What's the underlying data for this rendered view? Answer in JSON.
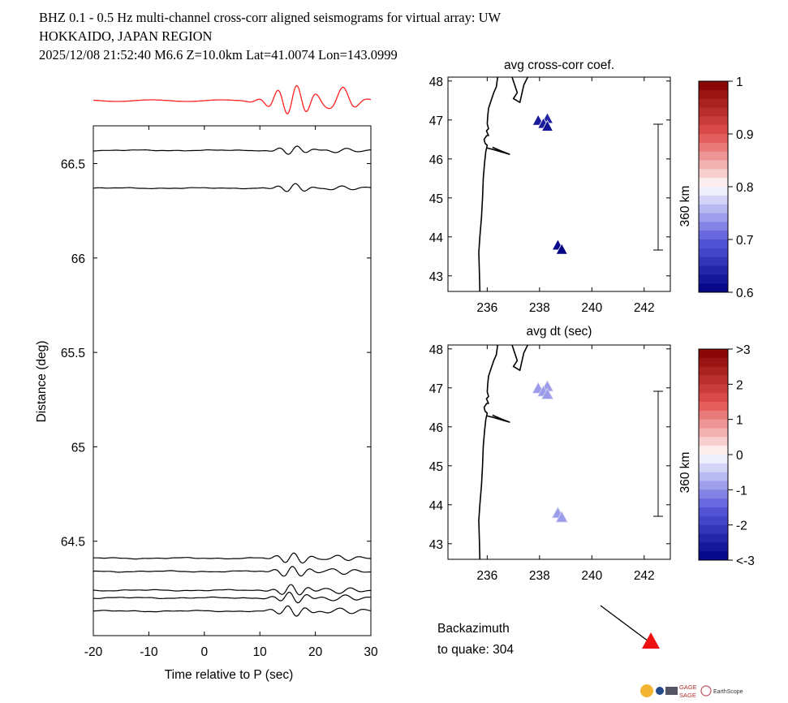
{
  "header": {
    "line1": "BHZ  0.1 - 0.5 Hz  multi-channel cross-corr aligned seismograms for virtual array: UW",
    "line2": "HOKKAIDO, JAPAN REGION",
    "line3": "2025/12/08  21:52:40  M6.6  Z=10.0km Lat=41.0074 Lon=143.0999"
  },
  "chart_data": [
    {
      "type": "line",
      "name": "aligned-seismograms",
      "xlabel": "Time relative to P (sec)",
      "ylabel": "Distance (deg)",
      "xlim": [
        -20,
        30
      ],
      "ylim": [
        64.0,
        66.7
      ],
      "xticks": [
        -20,
        -10,
        0,
        10,
        20,
        30
      ],
      "yticks": [
        64.5,
        65,
        65.5,
        66,
        66.5
      ],
      "ytick_labels": [
        "64.5",
        "65",
        "65.5",
        "66",
        "66.5"
      ],
      "trace_offsets_deg": [
        66.57,
        66.37,
        64.41,
        64.34,
        64.24,
        64.2,
        64.13
      ],
      "stack_color": "#ff2020",
      "trace_color": "#000000"
    },
    {
      "type": "scatter",
      "name": "avg-cross-corr-map",
      "title": "avg cross-corr coef.",
      "xlim": [
        234.5,
        243
      ],
      "ylim": [
        42.6,
        48.1
      ],
      "xticks": [
        236,
        238,
        240,
        242
      ],
      "yticks": [
        43,
        44,
        45,
        46,
        47,
        48
      ],
      "stations": [
        {
          "lon": 237.95,
          "lat": 46.97,
          "value": 0.63
        },
        {
          "lon": 238.3,
          "lat": 47.02,
          "value": 0.64
        },
        {
          "lon": 238.15,
          "lat": 46.89,
          "value": 0.63
        },
        {
          "lon": 238.3,
          "lat": 46.82,
          "value": 0.62
        },
        {
          "lon": 238.7,
          "lat": 43.77,
          "value": 0.61
        },
        {
          "lon": 238.85,
          "lat": 43.66,
          "value": 0.6
        }
      ],
      "scale_label": "360 km",
      "colorbar": {
        "min": 0.6,
        "max": 1,
        "ticks": [
          1,
          0.9,
          0.8,
          0.7,
          0.6
        ],
        "tick_labels": [
          "1",
          "0.9",
          "0.8",
          "0.7",
          "0.6"
        ]
      }
    },
    {
      "type": "scatter",
      "name": "avg-dt-map",
      "title": "avg dt (sec)",
      "xlim": [
        234.5,
        243
      ],
      "ylim": [
        42.6,
        48.1
      ],
      "xticks": [
        236,
        238,
        240,
        242
      ],
      "yticks": [
        43,
        44,
        45,
        46,
        47,
        48
      ],
      "stations": [
        {
          "lon": 237.95,
          "lat": 46.97,
          "value": -0.9
        },
        {
          "lon": 238.3,
          "lat": 47.02,
          "value": -0.9
        },
        {
          "lon": 238.15,
          "lat": 46.89,
          "value": -0.9
        },
        {
          "lon": 238.3,
          "lat": 46.82,
          "value": -0.9
        },
        {
          "lon": 238.7,
          "lat": 43.77,
          "value": -0.9
        },
        {
          "lon": 238.85,
          "lat": 43.66,
          "value": -0.9
        }
      ],
      "scale_label": "360 km",
      "colorbar": {
        "min": -3,
        "max": 3,
        "ticks": [
          3,
          2,
          1,
          0,
          -1,
          -2,
          -3
        ],
        "tick_labels": [
          ">3",
          "2",
          "1",
          "0",
          "-1",
          "-2",
          "<-3"
        ]
      }
    }
  ],
  "backazimuth": {
    "line1": "Backazimuth",
    "line2": "to quake:  304",
    "value_deg": 304,
    "marker_color": "#ee1111"
  },
  "logos": {
    "gage": "GAGE",
    "sage": "SAGE",
    "earthscope": "EarthScope"
  }
}
